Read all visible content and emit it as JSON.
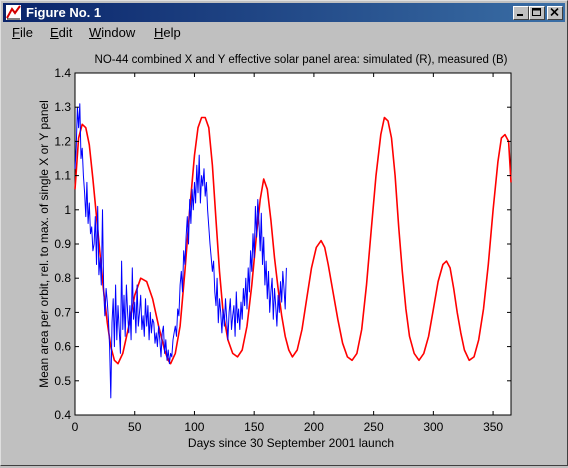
{
  "window": {
    "title": "Figure No. 1",
    "controls": [
      "minimize",
      "maximize",
      "close"
    ]
  },
  "menu": [
    {
      "label": "File",
      "mnemonic": "F"
    },
    {
      "label": "Edit",
      "mnemonic": "E"
    },
    {
      "label": "Window",
      "mnemonic": "W"
    },
    {
      "label": "Help",
      "mnemonic": "H"
    }
  ],
  "chart_data": {
    "type": "line",
    "title": "NO-44 combined X and Y effective solar panel area: simulated (R), measured (B)",
    "xlabel": "Days since 30 September 2001 launch",
    "ylabel": "Mean area per orbit, rel. to max. of single X or Y panel",
    "xlim": [
      0,
      365
    ],
    "ylim": [
      0.4,
      1.4
    ],
    "xticks": [
      "0",
      "50",
      "100",
      "150",
      "200",
      "250",
      "300",
      "350"
    ],
    "yticks": [
      "0.4",
      "0.5",
      "0.6",
      "0.7",
      "0.8",
      "0.9",
      "1",
      "1.1",
      "1.2",
      "1.3",
      "1.4"
    ],
    "grid": false,
    "series": [
      {
        "color": "#ff0000",
        "x": [
          0,
          3,
          6,
          9,
          12,
          15,
          18,
          21,
          24,
          27,
          30,
          33,
          36,
          40,
          45,
          50,
          55,
          60,
          65,
          70,
          75,
          78,
          80,
          84,
          88,
          92,
          96,
          100,
          103,
          106,
          109,
          112,
          115,
          118,
          121,
          124,
          128,
          132,
          136,
          140,
          144,
          148,
          152,
          155,
          158,
          161,
          164,
          167,
          170,
          173,
          176,
          179,
          182,
          186,
          190,
          194,
          198,
          202,
          206,
          209,
          212,
          216,
          220,
          224,
          228,
          232,
          236,
          240,
          244,
          248,
          252,
          256,
          259,
          262,
          265,
          268,
          271,
          274,
          277,
          280,
          284,
          288,
          292,
          296,
          300,
          304,
          308,
          311,
          314,
          317,
          320,
          323,
          326,
          330,
          334,
          338,
          342,
          346,
          350,
          354,
          357,
          360,
          363,
          365
        ],
        "y": [
          1.06,
          1.21,
          1.25,
          1.24,
          1.19,
          1.09,
          0.98,
          0.87,
          0.76,
          0.67,
          0.6,
          0.56,
          0.55,
          0.58,
          0.66,
          0.75,
          0.8,
          0.79,
          0.74,
          0.66,
          0.59,
          0.56,
          0.55,
          0.58,
          0.66,
          0.82,
          1.0,
          1.16,
          1.24,
          1.27,
          1.27,
          1.24,
          1.13,
          0.97,
          0.82,
          0.7,
          0.62,
          0.58,
          0.57,
          0.59,
          0.66,
          0.78,
          0.93,
          1.03,
          1.09,
          1.06,
          0.97,
          0.86,
          0.77,
          0.69,
          0.63,
          0.59,
          0.57,
          0.59,
          0.65,
          0.74,
          0.83,
          0.89,
          0.91,
          0.89,
          0.84,
          0.76,
          0.68,
          0.61,
          0.57,
          0.56,
          0.58,
          0.65,
          0.78,
          0.94,
          1.1,
          1.22,
          1.27,
          1.26,
          1.21,
          1.1,
          0.95,
          0.82,
          0.71,
          0.63,
          0.58,
          0.56,
          0.58,
          0.63,
          0.71,
          0.79,
          0.84,
          0.85,
          0.83,
          0.77,
          0.7,
          0.64,
          0.59,
          0.56,
          0.57,
          0.62,
          0.71,
          0.84,
          1.0,
          1.14,
          1.21,
          1.22,
          1.2,
          1.08
        ]
      },
      {
        "color": "#0000ff",
        "x": [
          0,
          1,
          2,
          3,
          4,
          5,
          6,
          7,
          8,
          9,
          10,
          11,
          12,
          13,
          14,
          15,
          16,
          17,
          18,
          19,
          20,
          21,
          22,
          23,
          24,
          25,
          26,
          27,
          28,
          29,
          30,
          31,
          32,
          33,
          34,
          35,
          36,
          37,
          38,
          39,
          40,
          41,
          42,
          43,
          44,
          45,
          46,
          47,
          48,
          49,
          50,
          51,
          52,
          53,
          54,
          55,
          56,
          57,
          58,
          59,
          60,
          61,
          62,
          63,
          64,
          65,
          66,
          67,
          68,
          69,
          70,
          71,
          72,
          73,
          74,
          75,
          76,
          77,
          78,
          79,
          80,
          81,
          82,
          83,
          84,
          85,
          86,
          87,
          88,
          89,
          90,
          91,
          92,
          93,
          94,
          95,
          96,
          97,
          98,
          99,
          100,
          101,
          102,
          103,
          104,
          105,
          106,
          107,
          108,
          109,
          110,
          111,
          112,
          113,
          114,
          115,
          116,
          117,
          118,
          119,
          120,
          121,
          122,
          123,
          124,
          125,
          126,
          127,
          128,
          129,
          130,
          131,
          132,
          133,
          134,
          135,
          136,
          137,
          138,
          139,
          140,
          141,
          142,
          143,
          144,
          145,
          146,
          147,
          148,
          149,
          150,
          151,
          152,
          153,
          154,
          155,
          156,
          157,
          158,
          159,
          160,
          161,
          162,
          163,
          164,
          165,
          166,
          167,
          168,
          169,
          170,
          171,
          172,
          173,
          174,
          175,
          176,
          177
        ],
        "y": [
          1.12,
          1.18,
          1.3,
          1.24,
          1.31,
          1.15,
          1.18,
          1.1,
          1.05,
          0.98,
          1.08,
          0.96,
          1.02,
          0.93,
          0.95,
          0.88,
          0.9,
          0.98,
          0.84,
          1.01,
          0.81,
          0.86,
          0.78,
          1.0,
          0.76,
          0.69,
          0.77,
          0.73,
          0.68,
          0.6,
          0.45,
          0.67,
          0.74,
          0.6,
          0.78,
          0.62,
          0.72,
          0.65,
          0.58,
          0.85,
          0.65,
          0.75,
          0.63,
          0.78,
          0.7,
          0.64,
          0.72,
          0.62,
          0.83,
          0.68,
          0.73,
          0.64,
          0.78,
          0.66,
          0.7,
          0.75,
          0.65,
          0.69,
          0.63,
          0.74,
          0.66,
          0.72,
          0.62,
          0.7,
          0.64,
          0.68,
          0.67,
          0.61,
          0.64,
          0.6,
          0.66,
          0.62,
          0.57,
          0.64,
          0.66,
          0.58,
          0.62,
          0.56,
          0.59,
          0.55,
          0.58,
          0.57,
          0.62,
          0.64,
          0.66,
          0.63,
          0.71,
          0.69,
          0.78,
          0.82,
          0.76,
          0.88,
          0.84,
          0.92,
          0.98,
          0.9,
          1.03,
          0.96,
          1.06,
          1.0,
          1.08,
          1.02,
          1.13,
          1.05,
          1.16,
          1.02,
          1.1,
          1.07,
          1.12,
          1.04,
          1.08,
          1.0,
          0.95,
          0.9,
          0.86,
          0.82,
          0.85,
          0.76,
          0.72,
          0.8,
          0.67,
          0.74,
          0.7,
          0.64,
          0.71,
          0.66,
          0.74,
          0.68,
          0.62,
          0.7,
          0.74,
          0.65,
          0.69,
          0.72,
          0.63,
          0.76,
          0.67,
          0.71,
          0.65,
          0.73,
          0.68,
          0.77,
          0.72,
          0.8,
          0.71,
          0.83,
          0.76,
          0.88,
          0.82,
          0.93,
          0.86,
          1.01,
          0.92,
          1.03,
          0.96,
          0.88,
          0.99,
          0.84,
          0.92,
          0.78,
          0.85,
          0.74,
          0.82,
          0.7,
          0.76,
          0.8,
          0.68,
          0.77,
          0.72,
          0.66,
          0.75,
          0.7,
          0.79,
          0.73,
          0.82,
          0.77,
          0.71,
          0.83
        ]
      }
    ]
  }
}
